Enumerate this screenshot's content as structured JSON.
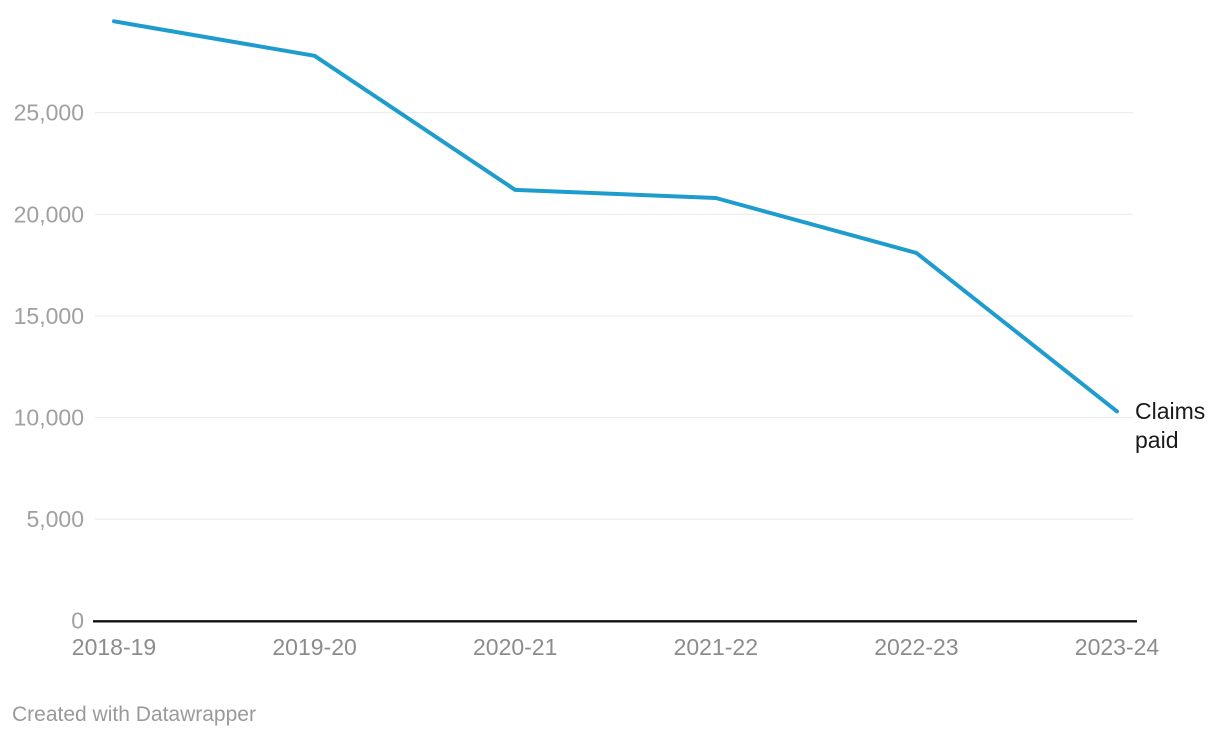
{
  "chart_data": {
    "type": "line",
    "title": "",
    "xlabel": "",
    "ylabel": "",
    "categories": [
      "2018-19",
      "2019-20",
      "2020-21",
      "2021-22",
      "2022-23",
      "2023-24"
    ],
    "series": [
      {
        "name": "Claims paid",
        "values": [
          29500,
          27800,
          21200,
          20800,
          18100,
          10300
        ]
      }
    ],
    "ylim": [
      0,
      29500
    ],
    "yticks": [
      {
        "value": 0,
        "label": "0"
      },
      {
        "value": 5000,
        "label": "5,000"
      },
      {
        "value": 10000,
        "label": "10,000"
      },
      {
        "value": 15000,
        "label": "15,000"
      },
      {
        "value": 20000,
        "label": "20,000"
      },
      {
        "value": 25000,
        "label": "25,000"
      }
    ],
    "grid": "horizontal",
    "legend_position": "line-end-label",
    "annotation": "Claims paid"
  },
  "colors": {
    "line": "#1e9cce",
    "gridline": "#e9e9e9",
    "axis_line": "#111111",
    "y_tick_label": "#a0a0a0",
    "x_tick_label": "#8c8c8c",
    "annotation_text": "#1a1a1a",
    "footer_text": "#9a9a9a",
    "background": "#ffffff"
  },
  "footer": {
    "credit": "Created with Datawrapper"
  }
}
